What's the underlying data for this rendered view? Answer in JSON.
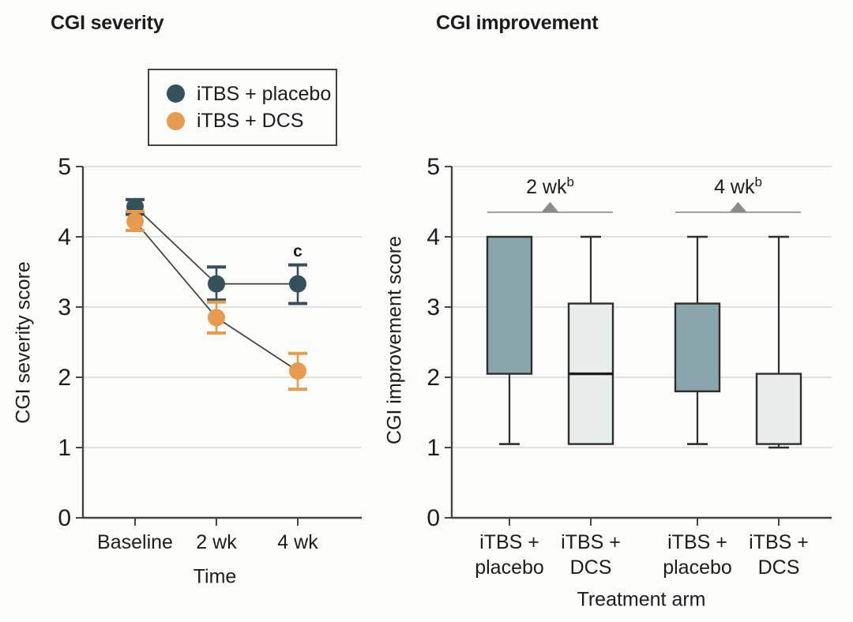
{
  "figure": {
    "panel_titles": {
      "left": "CGI severity",
      "right": "CGI improvement"
    },
    "colors": {
      "placebo": "#35525c",
      "dcs": "#e89a4d",
      "box_teal_fill": "#8aa6ad",
      "box_light_fill": "#e8eceb",
      "grid": "#e3e3e3",
      "axis": "#454545",
      "line": "#3f3f3f",
      "box_stroke": "#2e2e2e",
      "bracket": "#919191",
      "triangle": "#8c8c8c",
      "text": "#1c1c1c"
    }
  },
  "chart_data": [
    {
      "id": "cgi-severity",
      "type": "line",
      "title": "CGI severity",
      "xlabel": "Time",
      "ylabel": "CGI severity score",
      "categories": [
        "Baseline",
        "2 wk",
        "4 wk"
      ],
      "ylim": [
        0,
        5
      ],
      "yticks": [
        0,
        1,
        2,
        3,
        4,
        5
      ],
      "grid": true,
      "legend_position": "above-plot-left",
      "series": [
        {
          "name": "iTBS + placebo",
          "color": "#35525c",
          "values": [
            4.43,
            3.33,
            3.33
          ],
          "err_lo": [
            4.32,
            3.1,
            3.05
          ],
          "err_hi": [
            4.53,
            3.57,
            3.6
          ]
        },
        {
          "name": "iTBS + DCS",
          "color": "#e89a4d",
          "values": [
            4.22,
            2.85,
            2.09
          ],
          "err_lo": [
            4.09,
            2.63,
            1.83
          ],
          "err_hi": [
            4.36,
            3.07,
            2.34
          ]
        }
      ],
      "annotations": [
        {
          "text": "c",
          "category_index": 2,
          "series": "iTBS + placebo",
          "y": 3.72
        }
      ]
    },
    {
      "id": "cgi-improvement",
      "type": "box",
      "title": "CGI improvement",
      "xlabel": "Treatment arm",
      "ylabel": "CGI improvement score",
      "categories": [
        [
          "iTBS +",
          "placebo"
        ],
        [
          "iTBS +",
          "DCS"
        ],
        [
          "iTBS +",
          "placebo"
        ],
        [
          "iTBS +",
          "DCS"
        ]
      ],
      "ylim": [
        0,
        5
      ],
      "yticks": [
        0,
        1,
        2,
        3,
        4,
        5
      ],
      "grid": true,
      "boxes": [
        {
          "group": "2 wk",
          "arm": "iTBS + placebo",
          "q1": 2.05,
          "median": 4.0,
          "q3": 4.0,
          "whisker_low": 1.05,
          "whisker_high": 4.0,
          "fill": "#8aa6ad"
        },
        {
          "group": "2 wk",
          "arm": "iTBS + DCS",
          "q1": 1.05,
          "median": 2.05,
          "q3": 3.05,
          "whisker_low": 1.05,
          "whisker_high": 4.0,
          "fill": "#e8eceb"
        },
        {
          "group": "4 wk",
          "arm": "iTBS + placebo",
          "q1": 1.8,
          "median": 3.05,
          "q3": 3.05,
          "whisker_low": 1.05,
          "whisker_high": 4.0,
          "fill": "#8aa6ad"
        },
        {
          "group": "4 wk",
          "arm": "iTBS + DCS",
          "q1": 1.05,
          "median": 2.05,
          "q3": 2.05,
          "whisker_low": 1.0,
          "whisker_high": 4.0,
          "fill": "#e8eceb"
        }
      ],
      "comparisons": [
        {
          "text": "2 wk",
          "superscript": "b",
          "spans_categories": [
            0,
            1
          ],
          "y": 4.35
        },
        {
          "text": "4 wk",
          "superscript": "b",
          "spans_categories": [
            2,
            3
          ],
          "y": 4.35
        }
      ]
    }
  ]
}
